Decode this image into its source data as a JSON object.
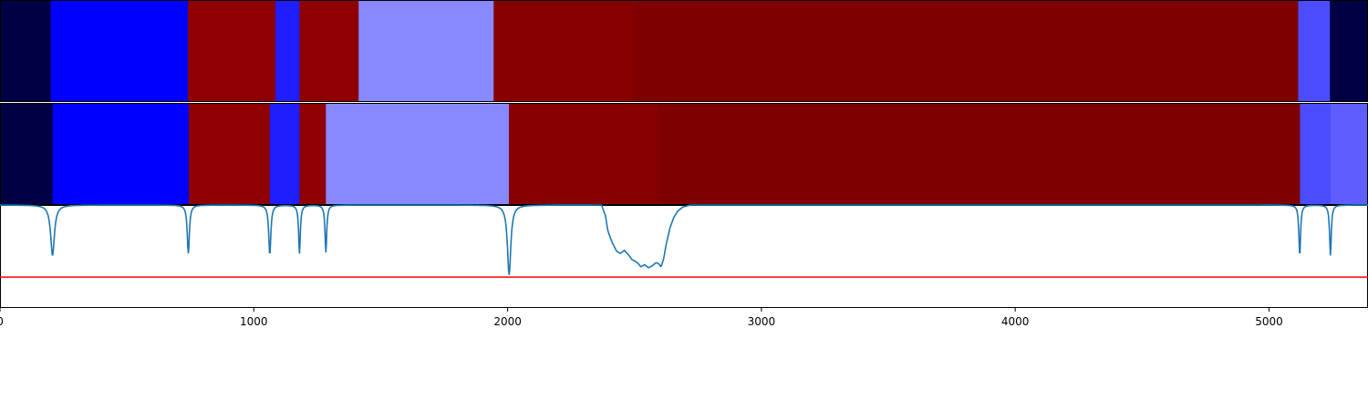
{
  "chart_data": [
    {
      "type": "heatmap",
      "name": "segment-track-1",
      "segments": [
        {
          "start": 0,
          "end": 200,
          "color": "#000044"
        },
        {
          "start": 200,
          "end": 740,
          "color": "#0000ff"
        },
        {
          "start": 740,
          "end": 1085,
          "color": "#8f0000"
        },
        {
          "start": 1085,
          "end": 1180,
          "color": "#1e1eff"
        },
        {
          "start": 1180,
          "end": 1413,
          "color": "#8f0000"
        },
        {
          "start": 1413,
          "end": 1945,
          "color": "#8888ff"
        },
        {
          "start": 1945,
          "end": 2500,
          "color": "#860000"
        },
        {
          "start": 2500,
          "end": 5115,
          "color": "#7f0000"
        },
        {
          "start": 5115,
          "end": 5240,
          "color": "#4c4cff"
        },
        {
          "start": 5240,
          "end": 5390,
          "color": "#000044"
        }
      ]
    },
    {
      "type": "heatmap",
      "name": "segment-track-2",
      "segments": [
        {
          "start": 0,
          "end": 207,
          "color": "#000044"
        },
        {
          "start": 207,
          "end": 744,
          "color": "#0000ff"
        },
        {
          "start": 744,
          "end": 1063,
          "color": "#8f0000"
        },
        {
          "start": 1063,
          "end": 1180,
          "color": "#1e1eff"
        },
        {
          "start": 1180,
          "end": 1284,
          "color": "#8f0000"
        },
        {
          "start": 1284,
          "end": 2005,
          "color": "#8888ff"
        },
        {
          "start": 2005,
          "end": 2595,
          "color": "#860000"
        },
        {
          "start": 2595,
          "end": 5122,
          "color": "#7f0000"
        },
        {
          "start": 5122,
          "end": 5242,
          "color": "#4c4cff"
        },
        {
          "start": 5242,
          "end": 5390,
          "color": "#5e5eff"
        }
      ]
    },
    {
      "type": "line",
      "name": "signal-track",
      "line_color": "#1f77b4",
      "threshold_color": "#ff0000",
      "threshold": 0.3,
      "ylim": [
        0,
        1
      ],
      "xlim": [
        0,
        5390
      ],
      "x_ticks": [
        0,
        1000,
        2000,
        3000,
        4000,
        5000
      ],
      "x_tick_labels": [
        "0",
        "1000",
        "2000",
        "3000",
        "4000",
        "5000"
      ],
      "baseline": 1.0,
      "dips": [
        {
          "center": 207,
          "depth": 0.49,
          "width": 9
        },
        {
          "center": 742,
          "depth": 0.47,
          "width": 5
        },
        {
          "center": 1063,
          "depth": 0.48,
          "width": 5
        },
        {
          "center": 1180,
          "depth": 0.47,
          "width": 4
        },
        {
          "center": 1284,
          "depth": 0.46,
          "width": 4
        },
        {
          "center": 2006,
          "depth": 0.68,
          "width": 8
        },
        {
          "center": 5121,
          "depth": 0.49,
          "width": 4
        },
        {
          "center": 5242,
          "depth": 0.49,
          "width": 4
        }
      ],
      "trough": {
        "points": [
          [
            2370,
            1.0
          ],
          [
            2385,
            0.9
          ],
          [
            2395,
            0.75
          ],
          [
            2405,
            0.68
          ],
          [
            2415,
            0.62
          ],
          [
            2430,
            0.55
          ],
          [
            2445,
            0.53
          ],
          [
            2460,
            0.56
          ],
          [
            2475,
            0.52
          ],
          [
            2490,
            0.47
          ],
          [
            2505,
            0.45
          ],
          [
            2515,
            0.43
          ],
          [
            2525,
            0.4
          ],
          [
            2540,
            0.42
          ],
          [
            2555,
            0.39
          ],
          [
            2570,
            0.41
          ],
          [
            2585,
            0.44
          ],
          [
            2595,
            0.43
          ],
          [
            2605,
            0.4
          ],
          [
            2615,
            0.48
          ],
          [
            2625,
            0.62
          ],
          [
            2640,
            0.78
          ],
          [
            2655,
            0.88
          ],
          [
            2670,
            0.94
          ],
          [
            2690,
            0.98
          ],
          [
            2720,
            1.0
          ]
        ]
      }
    }
  ]
}
